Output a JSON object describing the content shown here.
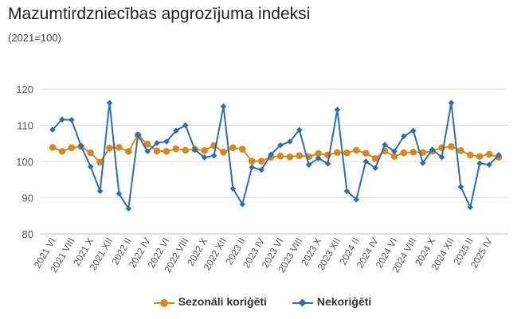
{
  "chart_data": {
    "type": "line",
    "title": "Mazumtirdzniecības apgrozījuma indeksi",
    "subtitle": "(2021=100)",
    "xlabel": "",
    "ylabel": "",
    "ylim": [
      80,
      120
    ],
    "yticks": [
      "80",
      "90",
      "100",
      "110",
      "120"
    ],
    "grid": true,
    "legend_position": "bottom",
    "categories": [
      "2021 VI",
      "2021 VII",
      "2021 VIII",
      "2021 IX",
      "2021 X",
      "2021 XI",
      "2021 XII",
      "2022 I",
      "2022 II",
      "2022 III",
      "2022 IV",
      "2022 V",
      "2022 VI",
      "2022 VII",
      "2022 VIII",
      "2022 IX",
      "2022 X",
      "2022 XI",
      "2022 XII",
      "2023 I",
      "2023 II",
      "2023 III",
      "2023 IV",
      "2023 V",
      "2023 VI",
      "2023 VII",
      "2023 VIII",
      "2023 IX",
      "2023 X",
      "2023 XI",
      "2023 XII",
      "2024 I",
      "2024 II",
      "2024 III",
      "2024 IV",
      "2024 V",
      "2024 VI",
      "2024 VII",
      "2024 VIII",
      "2024 IX",
      "2024 X",
      "2024 XI",
      "2024 XII",
      "2025 I",
      "2025 II",
      "2025 III",
      "2025 IV",
      "2025 V"
    ],
    "x_tick_labels": [
      "2021 VI",
      "2021 VIII",
      "2021 X",
      "2021 XII",
      "2022 II",
      "2022 IV",
      "2022 VI",
      "2022 VIII",
      "2022 X",
      "2022 XII",
      "2023 II",
      "2023 IV",
      "2023 VI",
      "2023 VIII",
      "2023 X",
      "2023 XII",
      "2024 II",
      "2024 IV",
      "2024 VI",
      "2024 VIII",
      "2024 X",
      "2024 XII",
      "2025 II",
      "2025 IV"
    ],
    "series": [
      {
        "name": "Sezonāli koriģēti",
        "color": "#d9861c",
        "marker": "circle",
        "values": [
          103.9,
          102.8,
          103.8,
          104.1,
          102.4,
          99.8,
          103.7,
          103.9,
          102.8,
          107.3,
          104.8,
          102.9,
          102.8,
          103.5,
          103.1,
          103.4,
          103.0,
          104.4,
          102.6,
          103.8,
          103.4,
          100.1,
          100.1,
          101.2,
          101.5,
          101.3,
          101.6,
          101.3,
          102.2,
          101.8,
          102.5,
          102.4,
          103.1,
          102.3,
          100.8,
          102.9,
          101.4,
          102.4,
          102.6,
          102.5,
          102.8,
          103.8,
          104.1,
          103.0,
          101.8,
          101.4,
          102.0,
          101.2
        ]
      },
      {
        "name": "Nekoriģēti",
        "color": "#2e6db3",
        "marker": "diamond",
        "values": [
          108.8,
          111.6,
          111.5,
          104.3,
          98.6,
          91.8,
          116.2,
          91.1,
          87.0,
          107.3,
          102.8,
          105.1,
          105.5,
          108.5,
          110.0,
          103.2,
          101.1,
          101.6,
          115.2,
          92.5,
          88.2,
          98.4,
          97.7,
          101.9,
          104.5,
          105.5,
          108.7,
          99.1,
          100.9,
          99.4,
          114.3,
          91.8,
          89.5,
          100.0,
          98.2,
          104.6,
          102.8,
          107.0,
          108.5,
          99.6,
          103.3,
          101.2,
          116.2,
          93.0,
          87.4,
          99.5,
          99.1,
          101.8
        ]
      }
    ]
  }
}
